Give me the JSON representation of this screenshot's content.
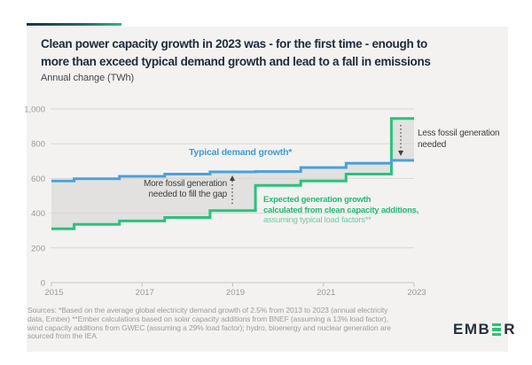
{
  "header": {
    "title_line1": "Clean power capacity growth in 2023 was - for the first time - enough to",
    "title_line2": "more than exceed typical demand growth and lead to a fall in emissions",
    "subtitle": "Annual change (TWh)"
  },
  "chart_data": {
    "type": "line",
    "subtype": "step",
    "x": [
      2015,
      2016,
      2017,
      2018,
      2019,
      2020,
      2021,
      2022,
      2023
    ],
    "series": [
      {
        "name": "Typical demand growth*",
        "color": "#4ba1da",
        "values": [
          585,
          598,
          612,
          625,
          638,
          640,
          663,
          688,
          704
        ]
      },
      {
        "name": "Expected generation growth calculated from clean capacity additions, assuming typical load factors**",
        "color": "#2bc17e",
        "values": [
          310,
          335,
          355,
          375,
          415,
          560,
          585,
          625,
          945
        ]
      }
    ],
    "title": "Clean power capacity growth in 2023 was - for the first time - enough to more than exceed typical demand growth and lead to a fall in emissions",
    "ylabel": "Annual change (TWh)",
    "xlabel": "",
    "ylim": [
      0,
      1000
    ],
    "yticks": [
      0,
      200,
      400,
      600,
      800,
      1000
    ],
    "ytick_labels": [
      "0",
      "200",
      "400",
      "600",
      "800",
      "1,000"
    ],
    "xticks": [
      2015,
      2017,
      2019,
      2021,
      2023
    ],
    "grid": true,
    "legend_position": "inline-annotations",
    "fill_between": "#e2e1df"
  },
  "annotations": {
    "demand_label": "Typical demand growth*",
    "more_fossil_line1": "More fossil generation",
    "more_fossil_line2": "needed to fill the gap",
    "less_fossil_line1": "Less fossil generation",
    "less_fossil_line2": "needed",
    "clean_label_line1": "Expected generation growth",
    "clean_label_line2": "calculated from clean capacity additions,",
    "clean_label_line3": "assuming typical load factors**"
  },
  "footer": {
    "sources_lines": [
      "Sources: *Based on the average global electricity demand growth of 2.5% from 2013 to 2023 (annual electricity",
      "data, Ember) **Ember calculations based on solar capacity additions from BNEF (assuming a 13% load factor),",
      "wind capacity additions from GWEC (assuming a 29% load factor); hydro, bioenergy and nuclear generation are",
      "sourced from the IEA"
    ],
    "logo_text_left": "EMB",
    "logo_text_right": "R"
  },
  "colors": {
    "demand_blue": "#4ba1da",
    "clean_green": "#2bc17e",
    "fill_gray": "#e2e1df",
    "card_background": "#f3f2f0",
    "title_navy": "#202c3a",
    "logo_green": "#29c472",
    "accent_gradient_start": "#15304a",
    "accent_gradient_end": "#2bbd7c"
  }
}
